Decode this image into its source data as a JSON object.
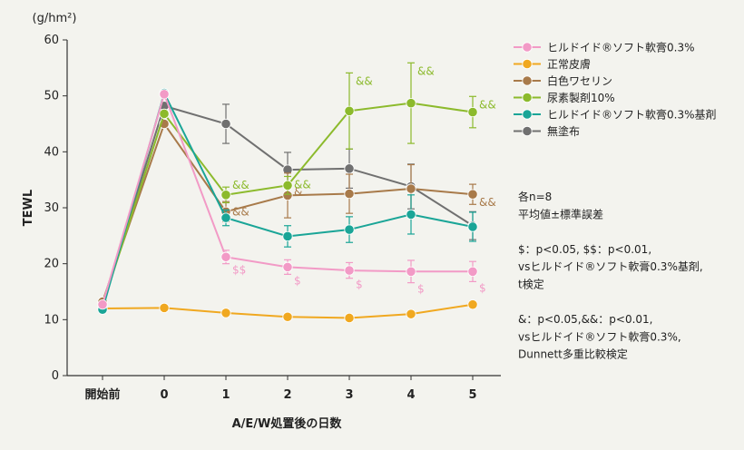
{
  "chart_data": {
    "type": "line",
    "ylabel": "TEWL",
    "yunit": "(g/hm²)",
    "xlabel": "A/E/W処置後の日数",
    "categories": [
      "開始前",
      "0",
      "1",
      "2",
      "3",
      "4",
      "5"
    ],
    "ylim": [
      0,
      60
    ],
    "yticks": [
      0,
      10,
      20,
      30,
      40,
      50,
      60
    ],
    "grid": false,
    "legend_position": "right",
    "series": [
      {
        "name": "ヒルドイド®ソフト軟膏0.3%",
        "color": "#f29ac6",
        "values": [
          12.7,
          50.3,
          21.2,
          19.4,
          18.8,
          18.6,
          18.6
        ],
        "err": [
          0,
          0,
          1.2,
          1.3,
          1.4,
          2.0,
          1.8
        ],
        "marks": [
          "",
          "",
          "$$",
          "$",
          "$",
          "$",
          "$"
        ]
      },
      {
        "name": "正常皮膚",
        "color": "#f0a820",
        "values": [
          12.0,
          12.1,
          11.2,
          10.5,
          10.3,
          11.0,
          12.7
        ],
        "err": [
          0,
          0,
          0,
          0,
          0,
          0,
          0
        ],
        "marks": [
          "",
          "",
          "",
          "",
          "",
          "",
          ""
        ]
      },
      {
        "name": "白色ワセリン",
        "color": "#a87a4a",
        "values": [
          13.2,
          45.0,
          29.3,
          32.2,
          32.5,
          33.4,
          32.4
        ],
        "err": [
          0,
          0,
          1.8,
          4.0,
          3.5,
          4.3,
          1.8
        ],
        "marks": [
          "",
          "",
          "&&",
          "&",
          "",
          "",
          "&&"
        ]
      },
      {
        "name": "尿素製剤10%",
        "color": "#8cba2c",
        "values": [
          12.5,
          46.8,
          32.3,
          34.0,
          47.3,
          48.7,
          47.1
        ],
        "err": [
          0,
          0,
          1.4,
          1.6,
          6.8,
          7.2,
          2.8
        ],
        "marks": [
          "",
          "",
          "&&",
          "&&",
          "&&",
          "&&",
          "&&"
        ]
      },
      {
        "name": "ヒルドイド®ソフト軟膏0.3%基剤",
        "color": "#1aa597",
        "values": [
          11.8,
          50.5,
          28.2,
          24.9,
          26.1,
          28.8,
          26.6
        ],
        "err": [
          0,
          0,
          1.4,
          1.9,
          2.3,
          3.5,
          2.6
        ],
        "marks": [
          "",
          "",
          "",
          "",
          "",
          "",
          ""
        ]
      },
      {
        "name": "無塗布",
        "color": "#707070",
        "values": [
          12.9,
          48.2,
          45.0,
          36.8,
          37.0,
          33.8,
          26.8
        ],
        "err": [
          0,
          0,
          3.5,
          3.1,
          3.5,
          4.0,
          2.5
        ],
        "marks": [
          "",
          "",
          "",
          "",
          "",
          "",
          ""
        ]
      }
    ],
    "notes": [
      "各n=8",
      "平均値±標準誤差",
      "",
      "$：p<0.05, $$：p<0.01,",
      "vsヒルドイド®ソフト軟膏0.3%基剤,",
      "t検定",
      "",
      "&：p<0.05,&&：p<0.01,",
      "vsヒルドイド®ソフト軟膏0.3%,",
      "Dunnett多重比較検定"
    ]
  }
}
